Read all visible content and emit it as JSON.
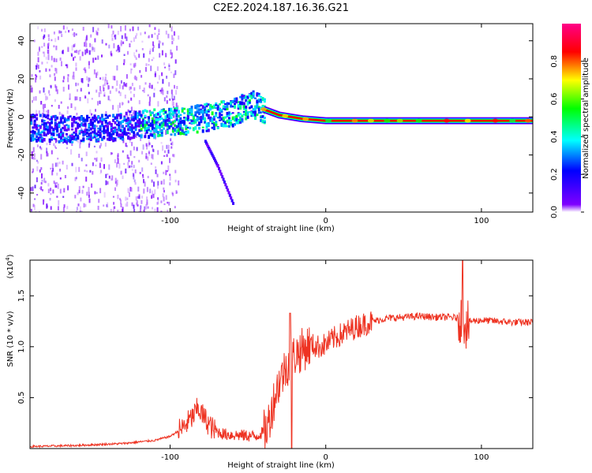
{
  "title": "C2E2.2024.187.16.36.G21",
  "chart_data": [
    {
      "type": "heatmap",
      "xlabel": "Height of straight line (km)",
      "ylabel": "Frequency (Hz)",
      "xlim": [
        -190,
        133
      ],
      "ylim": [
        -50,
        49
      ],
      "xticks": [
        -100,
        0,
        100
      ],
      "yticks": [
        40,
        20,
        0,
        -20,
        -40
      ],
      "xtick_labels": [
        "-100",
        "0",
        "100"
      ],
      "ytick_labels": [
        "40",
        "20",
        "0",
        "-20",
        "-40"
      ],
      "colorbar": {
        "label": "Normalized spectral amplitude",
        "ticks": [
          0.0,
          0.2,
          0.4,
          0.6,
          0.8
        ],
        "tick_labels": [
          "0.0",
          "0.2",
          "0.4",
          "0.6",
          "0.8"
        ],
        "colormap": [
          "#ffffff",
          "#7f00ff",
          "#0000ff",
          "#00ffff",
          "#00ff00",
          "#ffff00",
          "#ff0000",
          "#ff0088"
        ]
      },
      "features": {
        "main_band": [
          [
            -190,
            -5
          ],
          [
            -160,
            -6
          ],
          [
            -140,
            -5
          ],
          [
            -120,
            -3
          ],
          [
            -100,
            -2
          ],
          [
            -80,
            0
          ],
          [
            -60,
            3
          ],
          [
            -48,
            8
          ],
          [
            -40,
            4
          ],
          [
            -30,
            1
          ],
          [
            -15,
            -1
          ],
          [
            0,
            -2
          ],
          [
            50,
            -2
          ],
          [
            100,
            -2
          ],
          [
            133,
            -2
          ]
        ],
        "branch": [
          [
            -78,
            -12
          ],
          [
            -70,
            -25
          ],
          [
            -60,
            -45
          ]
        ],
        "peak_amplitude_from_km": -40
      }
    },
    {
      "type": "line",
      "xlabel": "Height of straight line (km)",
      "ylabel": "SNR (10 * v/v)",
      "yscale_label": "(x10",
      "yscale_exponent": "4",
      "xlim": [
        -190,
        133
      ],
      "ylim": [
        0,
        1.85
      ],
      "xticks": [
        -100,
        0,
        100
      ],
      "yticks": [
        0.5,
        1.0,
        1.5
      ],
      "xtick_labels": [
        "-100",
        "0",
        "100"
      ],
      "ytick_labels": [
        "0.5",
        "1.0",
        "1.5"
      ],
      "line_color": "#ee3322",
      "x": [
        -190,
        -160,
        -130,
        -110,
        -100,
        -92,
        -85,
        -82,
        -78,
        -72,
        -65,
        -55,
        -45,
        -38,
        -33,
        -30,
        -25,
        -20,
        -15,
        -10,
        -5,
        0,
        5,
        10,
        20,
        30,
        40,
        50,
        60,
        70,
        80,
        85,
        88,
        90,
        93,
        100,
        110,
        120,
        133
      ],
      "y": [
        0.02,
        0.03,
        0.05,
        0.08,
        0.12,
        0.2,
        0.32,
        0.4,
        0.3,
        0.18,
        0.14,
        0.13,
        0.12,
        0.18,
        0.5,
        0.65,
        0.82,
        0.92,
        0.97,
        1.02,
        1.0,
        1.02,
        1.08,
        1.12,
        1.2,
        1.25,
        1.28,
        1.29,
        1.3,
        1.29,
        1.29,
        1.28,
        1.3,
        1.22,
        1.25,
        1.26,
        1.25,
        1.24,
        1.24
      ]
    }
  ]
}
